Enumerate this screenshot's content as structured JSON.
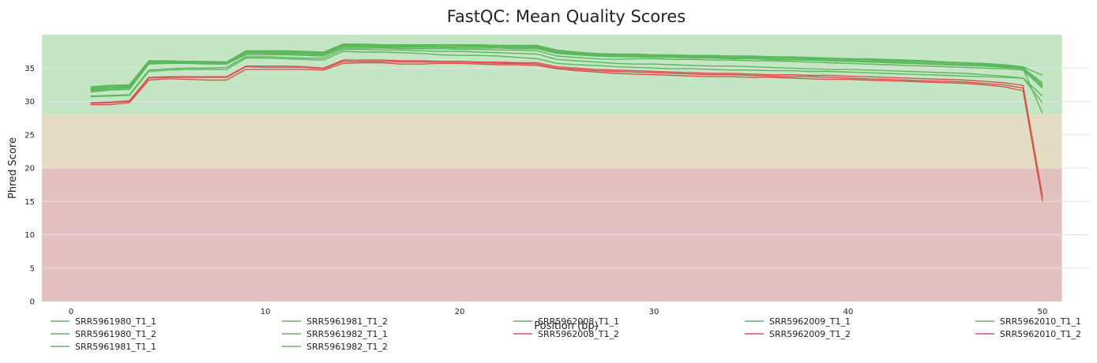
{
  "chart_data": {
    "type": "line",
    "title": "FastQC: Mean Quality Scores",
    "xlabel": "Position (bp)",
    "ylabel": "Phred Score",
    "xlim": [
      -1.5,
      51
    ],
    "ylim": [
      0,
      40
    ],
    "xticks": [
      0,
      10,
      20,
      30,
      40,
      50
    ],
    "yticks": [
      0,
      5,
      10,
      15,
      20,
      25,
      30,
      35
    ],
    "grid": "horizontal",
    "legend_position": "bottom",
    "bands": [
      {
        "from": 0,
        "to": 20,
        "color": "#e3c1c1"
      },
      {
        "from": 20,
        "to": 28,
        "color": "#e4dbc3"
      },
      {
        "from": 28,
        "to": 40,
        "color": "#c4e6c4"
      }
    ],
    "colors": {
      "pass": "#5cb85c",
      "fail": "#d9534f"
    },
    "x": [
      1,
      2,
      3,
      4,
      5,
      6,
      7,
      8,
      9,
      10,
      11,
      12,
      13,
      14,
      15,
      16,
      17,
      18,
      19,
      20,
      21,
      22,
      23,
      24,
      25,
      26,
      27,
      28,
      29,
      30,
      31,
      32,
      33,
      34,
      35,
      36,
      37,
      38,
      39,
      40,
      41,
      42,
      43,
      44,
      45,
      46,
      47,
      48,
      49,
      50
    ],
    "series": [
      {
        "name": "SRR5961980_T1_1",
        "color": "#5cb85c",
        "values": [
          32.0,
          32.3,
          32.4,
          36.0,
          36.0,
          36.0,
          35.9,
          35.8,
          37.5,
          37.5,
          37.5,
          37.4,
          37.3,
          38.5,
          38.5,
          38.5,
          38.4,
          38.4,
          38.5,
          38.5,
          38.4,
          38.4,
          38.3,
          38.3,
          37.6,
          37.3,
          37.1,
          37.0,
          37.0,
          37.0,
          36.9,
          36.9,
          36.8,
          36.8,
          36.7,
          36.7,
          36.6,
          36.5,
          36.5,
          36.4,
          36.3,
          36.2,
          36.1,
          36.0,
          35.9,
          35.8,
          35.6,
          35.4,
          35.1,
          32.2
        ]
      },
      {
        "name": "SRR5961980_T1_2",
        "color": "#5cb85c",
        "values": [
          30.7,
          30.8,
          30.9,
          34.5,
          34.7,
          34.8,
          34.8,
          34.8,
          36.5,
          36.5,
          36.4,
          36.3,
          36.2,
          37.5,
          37.4,
          37.4,
          37.3,
          37.2,
          37.0,
          36.9,
          36.9,
          36.8,
          36.6,
          36.4,
          35.7,
          35.5,
          35.4,
          35.2,
          35.1,
          35.0,
          34.9,
          34.9,
          34.8,
          34.7,
          34.7,
          34.6,
          34.6,
          34.5,
          34.5,
          34.4,
          34.3,
          34.2,
          34.1,
          34.0,
          33.9,
          33.8,
          33.7,
          33.6,
          33.5,
          29.8
        ]
      },
      {
        "name": "SRR5961981_T1_1",
        "color": "#5cb85c",
        "values": [
          32.2,
          32.4,
          32.5,
          36.1,
          36.1,
          36.0,
          36.0,
          35.9,
          37.6,
          37.6,
          37.6,
          37.5,
          37.4,
          38.6,
          38.6,
          38.5,
          38.5,
          38.5,
          38.5,
          38.5,
          38.5,
          38.4,
          38.4,
          38.4,
          37.7,
          37.4,
          37.2,
          37.1,
          37.1,
          37.0,
          37.0,
          36.9,
          36.9,
          36.8,
          36.8,
          36.7,
          36.7,
          36.6,
          36.5,
          36.4,
          36.4,
          36.3,
          36.2,
          36.1,
          35.9,
          35.8,
          35.7,
          35.5,
          35.2,
          33.9
        ]
      },
      {
        "name": "SRR5961981_T1_2",
        "color": "#5cb85c",
        "values": [
          30.8,
          30.9,
          31.0,
          34.7,
          34.9,
          35.0,
          35.0,
          35.1,
          36.7,
          36.7,
          36.6,
          36.5,
          36.5,
          37.8,
          37.8,
          37.7,
          37.7,
          37.6,
          37.5,
          37.5,
          37.4,
          37.3,
          37.2,
          37.1,
          36.3,
          36.1,
          35.9,
          35.7,
          35.6,
          35.6,
          35.5,
          35.4,
          35.3,
          35.3,
          35.2,
          35.1,
          35.0,
          34.9,
          34.8,
          34.8,
          34.7,
          34.6,
          34.5,
          34.4,
          34.3,
          34.2,
          34.0,
          33.8,
          33.5,
          30.8
        ]
      },
      {
        "name": "SRR5961982_T1_1",
        "color": "#5cb85c",
        "values": [
          31.7,
          32.0,
          32.2,
          35.8,
          35.8,
          35.8,
          35.7,
          35.6,
          37.3,
          37.3,
          37.3,
          37.2,
          37.1,
          38.3,
          38.2,
          38.2,
          38.2,
          38.2,
          38.2,
          38.2,
          38.2,
          38.1,
          38.1,
          38.1,
          37.4,
          37.1,
          37.0,
          36.9,
          36.8,
          36.8,
          36.7,
          36.7,
          36.6,
          36.5,
          36.5,
          36.4,
          36.3,
          36.2,
          36.2,
          36.1,
          36.0,
          35.9,
          35.8,
          35.7,
          35.6,
          35.5,
          35.4,
          35.2,
          34.9,
          32.5
        ]
      },
      {
        "name": "SRR5961982_T1_2",
        "color": "#5cb85c",
        "values": [
          31.4,
          31.7,
          31.8,
          35.6,
          35.7,
          35.7,
          35.6,
          35.6,
          37.0,
          37.0,
          37.0,
          36.9,
          36.8,
          38.0,
          38.0,
          38.0,
          37.9,
          37.9,
          37.9,
          37.8,
          37.8,
          37.7,
          37.7,
          37.6,
          36.8,
          36.6,
          36.4,
          36.3,
          36.4,
          36.4,
          36.3,
          36.3,
          36.2,
          36.2,
          36.1,
          36.1,
          36.0,
          35.9,
          35.8,
          35.7,
          35.6,
          35.5,
          35.4,
          35.3,
          35.2,
          35.1,
          35.0,
          34.9,
          34.7,
          32.0
        ]
      },
      {
        "name": "SRR5962008_T1_1",
        "color": "#5cb85c",
        "values": [
          31.6,
          31.8,
          32.0,
          35.7,
          35.8,
          35.8,
          35.7,
          35.7,
          37.2,
          37.2,
          37.1,
          37.0,
          37.0,
          38.2,
          38.2,
          38.1,
          38.1,
          38.1,
          38.1,
          38.0,
          38.0,
          38.0,
          37.9,
          37.9,
          37.2,
          37.0,
          36.8,
          36.7,
          36.7,
          36.6,
          36.6,
          36.5,
          36.5,
          36.4,
          36.4,
          36.3,
          36.2,
          36.2,
          36.1,
          36.0,
          35.9,
          35.8,
          35.7,
          35.6,
          35.5,
          35.4,
          35.3,
          35.1,
          34.9,
          28.2
        ]
      },
      {
        "name": "SRR5962008_T1_2",
        "color": "#d9534f",
        "values": [
          29.8,
          29.9,
          30.1,
          33.6,
          33.7,
          33.7,
          33.7,
          33.7,
          35.3,
          35.3,
          35.3,
          35.2,
          35.0,
          36.2,
          36.2,
          36.2,
          36.1,
          36.1,
          36.0,
          36.0,
          35.9,
          35.9,
          35.8,
          35.8,
          35.2,
          35.0,
          34.8,
          34.7,
          34.6,
          34.5,
          34.4,
          34.3,
          34.2,
          34.2,
          34.1,
          34.0,
          34.0,
          33.9,
          33.9,
          33.8,
          33.7,
          33.6,
          33.5,
          33.4,
          33.3,
          33.2,
          33.0,
          32.8,
          32.4,
          15.8
        ]
      },
      {
        "name": "SRR5962009_T1_1",
        "color": "#5cb85c",
        "values": [
          31.9,
          32.1,
          32.3,
          35.9,
          35.9,
          35.9,
          35.8,
          35.8,
          37.4,
          37.4,
          37.4,
          37.3,
          37.2,
          38.4,
          38.4,
          38.4,
          38.3,
          38.3,
          38.4,
          38.4,
          38.3,
          38.3,
          38.2,
          38.2,
          37.5,
          37.2,
          37.1,
          37.0,
          36.9,
          36.9,
          36.8,
          36.8,
          36.7,
          36.7,
          36.6,
          36.6,
          36.5,
          36.4,
          36.4,
          36.3,
          36.2,
          36.1,
          36.0,
          35.9,
          35.8,
          35.7,
          35.5,
          35.3,
          35.0,
          32.8
        ]
      },
      {
        "name": "SRR5962009_T1_2",
        "color": "#d9534f",
        "values": [
          29.5,
          29.5,
          29.8,
          33.2,
          33.4,
          33.3,
          33.2,
          33.2,
          34.8,
          34.8,
          34.8,
          34.8,
          34.7,
          35.7,
          35.8,
          35.8,
          35.6,
          35.6,
          35.7,
          35.7,
          35.6,
          35.5,
          35.5,
          35.4,
          34.9,
          34.6,
          34.4,
          34.2,
          34.1,
          34.0,
          33.9,
          33.8,
          33.7,
          33.7,
          33.6,
          33.6,
          33.5,
          33.4,
          33.3,
          33.3,
          33.2,
          33.1,
          33.0,
          32.9,
          32.8,
          32.7,
          32.5,
          32.2,
          31.6,
          15.0
        ]
      },
      {
        "name": "SRR5962010_T1_1",
        "color": "#5cb85c",
        "values": [
          31.8,
          32.0,
          32.1,
          35.8,
          35.8,
          35.8,
          35.7,
          35.7,
          37.3,
          37.3,
          37.2,
          37.2,
          37.1,
          38.3,
          38.3,
          38.3,
          38.2,
          38.2,
          38.2,
          38.2,
          38.2,
          38.1,
          38.1,
          38.0,
          37.3,
          37.1,
          36.9,
          36.8,
          36.8,
          36.7,
          36.7,
          36.6,
          36.6,
          36.5,
          36.5,
          36.4,
          36.3,
          36.3,
          36.2,
          36.1,
          36.0,
          35.9,
          35.8,
          35.7,
          35.6,
          35.5,
          35.3,
          35.2,
          34.9,
          32.3
        ]
      },
      {
        "name": "SRR5962010_T1_2",
        "color": "#d9534f",
        "values": [
          29.7,
          29.8,
          30.0,
          33.5,
          33.6,
          33.6,
          33.6,
          33.6,
          35.2,
          35.1,
          35.1,
          35.1,
          34.9,
          36.0,
          36.0,
          36.0,
          35.9,
          35.9,
          35.9,
          35.9,
          35.8,
          35.7,
          35.7,
          35.6,
          35.0,
          34.8,
          34.6,
          34.5,
          34.4,
          34.3,
          34.2,
          34.1,
          34.0,
          34.0,
          33.9,
          33.8,
          33.7,
          33.7,
          33.6,
          33.5,
          33.4,
          33.3,
          33.2,
          33.1,
          33.0,
          32.9,
          32.7,
          32.5,
          32.0,
          15.4
        ]
      }
    ]
  }
}
